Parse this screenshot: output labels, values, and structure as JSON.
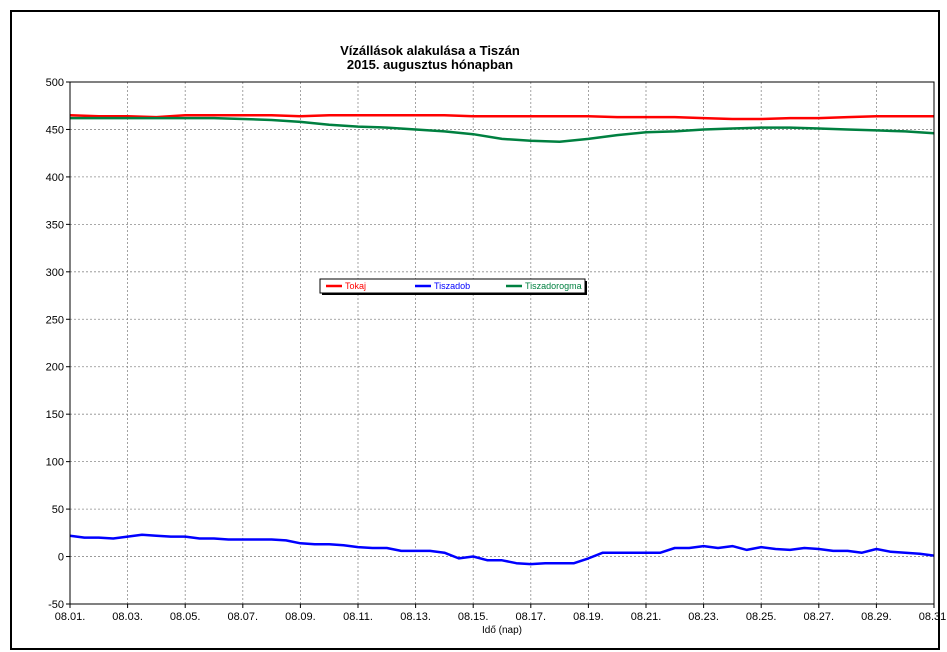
{
  "chart_data": {
    "type": "line",
    "title": "Vízállások alakulása a Tiszán",
    "subtitle": "2015. augusztus hónapban",
    "xlabel": "Idő (nap)",
    "ylabel": "",
    "ylim": [
      -50,
      500
    ],
    "yticks": [
      "500",
      "450",
      "400",
      "350",
      "300",
      "250",
      "200",
      "150",
      "100",
      "50",
      "0",
      "-50"
    ],
    "xticks": [
      "08.01.",
      "08.03.",
      "08.05.",
      "08.07.",
      "08.09.",
      "08.11.",
      "08.13.",
      "08.15.",
      "08.17.",
      "08.19.",
      "08.21.",
      "08.23.",
      "08.25.",
      "08.27.",
      "08.29.",
      "08.31."
    ],
    "xlim": [
      1,
      31
    ],
    "grid": true,
    "legend_position": "center-left",
    "series": [
      {
        "name": "Tokaj",
        "color": "#ff0000",
        "x": [
          1,
          2,
          3,
          4,
          5,
          6,
          7,
          8,
          9,
          10,
          11,
          12,
          13,
          14,
          15,
          16,
          17,
          18,
          19,
          20,
          21,
          22,
          23,
          24,
          25,
          26,
          27,
          28,
          29,
          30,
          31
        ],
        "values": [
          465,
          464,
          464,
          463,
          465,
          465,
          465,
          465,
          464,
          465,
          465,
          465,
          465,
          465,
          464,
          464,
          464,
          464,
          464,
          463,
          463,
          463,
          462,
          461,
          461,
          462,
          462,
          463,
          464,
          464,
          464
        ]
      },
      {
        "name": "Tiszadob",
        "color": "#0000ff",
        "x": [
          1,
          1.5,
          2,
          2.5,
          3,
          3.5,
          4,
          4.5,
          5,
          5.5,
          6,
          6.5,
          7,
          7.5,
          8,
          8.5,
          9,
          9.5,
          10,
          10.5,
          11,
          11.5,
          12,
          12.5,
          13,
          13.5,
          14,
          14.5,
          15,
          15.5,
          16,
          16.5,
          17,
          17.5,
          18,
          18.5,
          19,
          19.5,
          20,
          20.5,
          21,
          21.5,
          22,
          22.5,
          23,
          23.5,
          24,
          24.5,
          25,
          25.5,
          26,
          26.5,
          27,
          27.5,
          28,
          28.5,
          29,
          29.5,
          30,
          30.5,
          31
        ],
        "values": [
          22,
          20,
          20,
          19,
          21,
          23,
          22,
          21,
          21,
          19,
          19,
          18,
          18,
          18,
          18,
          17,
          14,
          13,
          13,
          12,
          10,
          9,
          9,
          6,
          6,
          6,
          4,
          -2,
          0,
          -4,
          -4,
          -7,
          -8,
          -7,
          -7,
          -7,
          -2,
          4,
          4,
          4,
          4,
          4,
          9,
          9,
          11,
          9,
          11,
          7,
          10,
          8,
          7,
          9,
          8,
          6,
          6,
          4,
          8,
          5,
          4,
          3,
          1
        ]
      },
      {
        "name": "Tiszadorogma",
        "color": "#008040",
        "x": [
          1,
          2,
          3,
          4,
          5,
          6,
          7,
          8,
          9,
          10,
          11,
          12,
          13,
          14,
          15,
          16,
          17,
          18,
          19,
          20,
          21,
          22,
          23,
          24,
          25,
          26,
          27,
          28,
          29,
          30,
          31
        ],
        "values": [
          462,
          462,
          462,
          462,
          462,
          462,
          461,
          460,
          458,
          455,
          453,
          452,
          450,
          448,
          445,
          440,
          438,
          437,
          440,
          444,
          447,
          448,
          450,
          451,
          452,
          452,
          451,
          450,
          449,
          448,
          446
        ]
      }
    ]
  }
}
